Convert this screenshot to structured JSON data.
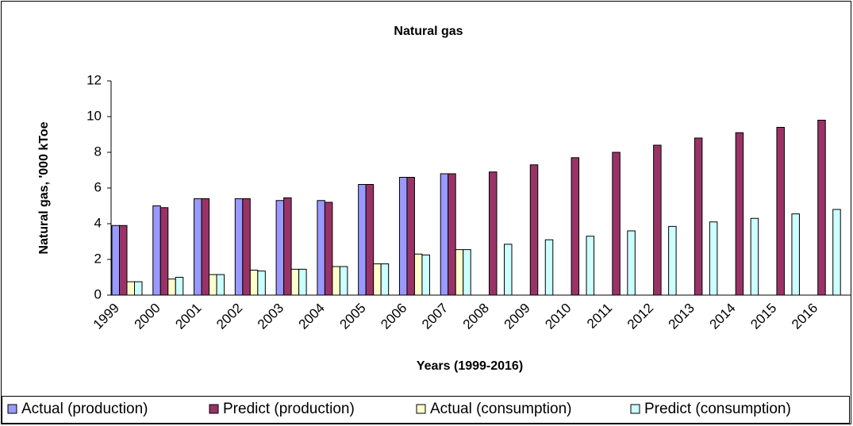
{
  "chart_data": {
    "type": "bar",
    "title": "Natural gas",
    "x_label": "Years (1999-2016)",
    "y_label": "Natural gas, '000 kToe",
    "categories": [
      "1999",
      "2000",
      "2001",
      "2002",
      "2003",
      "2004",
      "2005",
      "2006",
      "2007",
      "2008",
      "2009",
      "2010",
      "2011",
      "2012",
      "2013",
      "2014",
      "2015",
      "2016"
    ],
    "series": [
      {
        "name": "Actual (production)",
        "color": "#9999ff",
        "values": [
          3.9,
          5.0,
          5.4,
          5.4,
          5.3,
          5.3,
          6.2,
          6.6,
          6.8,
          null,
          null,
          null,
          null,
          null,
          null,
          null,
          null,
          null
        ]
      },
      {
        "name": "Predict (production)",
        "color": "#993366",
        "values": [
          3.9,
          4.9,
          5.4,
          5.4,
          5.45,
          5.2,
          6.2,
          6.6,
          6.8,
          6.9,
          7.3,
          7.7,
          8.0,
          8.4,
          8.8,
          9.1,
          9.4,
          9.8
        ]
      },
      {
        "name": "Actual (consumption)",
        "color": "#ffffcc",
        "values": [
          0.75,
          0.9,
          1.15,
          1.4,
          1.45,
          1.6,
          1.75,
          2.3,
          2.55,
          null,
          null,
          null,
          null,
          null,
          null,
          null,
          null,
          null
        ]
      },
      {
        "name": "Predict (consumption)",
        "color": "#ccffff",
        "values": [
          0.75,
          1.0,
          1.15,
          1.35,
          1.45,
          1.6,
          1.75,
          2.25,
          2.55,
          2.85,
          3.1,
          3.3,
          3.6,
          3.85,
          4.1,
          4.3,
          4.55,
          4.8
        ]
      }
    ],
    "ylim": [
      0,
      12
    ],
    "yticks": [
      0,
      2,
      4,
      6,
      8,
      10,
      12
    ],
    "grid": false,
    "legend": "bottom"
  }
}
